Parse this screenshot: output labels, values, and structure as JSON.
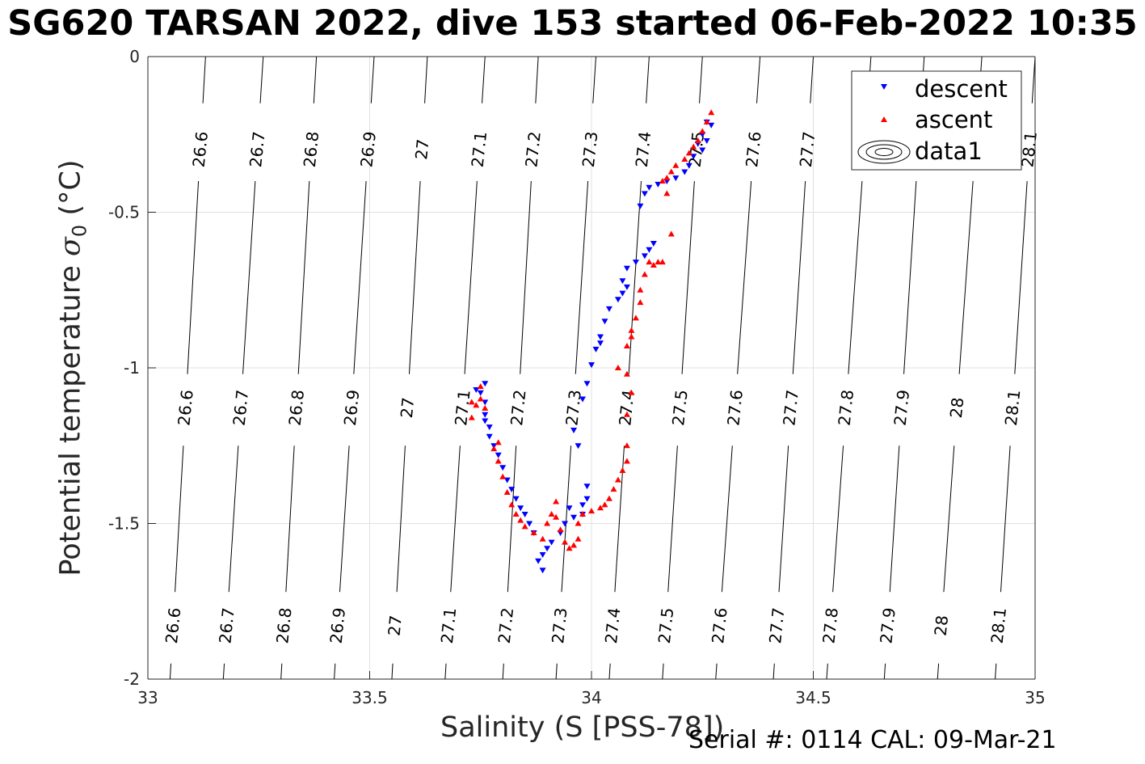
{
  "title": "SG620 TARSAN 2022, dive 153 started 06-Feb-2022 10:35",
  "xlabel": "Salinity (S [PSS-78])",
  "ylabel_prefix": "Potential temperature ",
  "ylabel_symbol": "σ",
  "ylabel_sub": "0",
  "ylabel_unit": " (°C)",
  "footer": "Serial #: 0114  CAL: 09-Mar-21",
  "colors": {
    "descent": "#0000ff",
    "ascent": "#ff0000",
    "contour": "#000000",
    "grid": "#e0e0e0"
  },
  "chart_data": {
    "type": "scatter",
    "xlim": [
      33,
      35
    ],
    "ylim": [
      -2,
      0
    ],
    "xticks": [
      "33",
      "33.5",
      "34",
      "34.5",
      "35"
    ],
    "yticks": [
      "0",
      "-0.5",
      "-1",
      "-1.5",
      "-2"
    ],
    "xtick_values": [
      33,
      33.5,
      34,
      34.5,
      35
    ],
    "ytick_values": [
      0,
      -0.5,
      -1,
      -1.5,
      -2
    ],
    "grid": true,
    "legend_position": "top-right",
    "legend": [
      "descent",
      "ascent",
      "data1"
    ],
    "density_contours": {
      "levels": [
        "26.6",
        "26.7",
        "26.8",
        "26.9",
        "27",
        "27.1",
        "27.2",
        "27.3",
        "27.4",
        "27.5",
        "27.6",
        "27.7",
        "27.8",
        "27.9",
        "28",
        "28.1"
      ],
      "bottom_salinity": [
        33.05,
        33.17,
        33.3,
        33.42,
        33.55,
        33.67,
        33.8,
        33.92,
        34.04,
        34.16,
        34.28,
        34.41,
        34.53,
        34.66,
        34.78,
        34.91
      ],
      "top_salinity": [
        33.13,
        33.26,
        33.38,
        33.51,
        33.63,
        33.76,
        33.88,
        34.01,
        34.13,
        34.25,
        34.38,
        34.5,
        34.63,
        34.75,
        34.88,
        35.0
      ]
    },
    "series": [
      {
        "name": "descent",
        "marker": "triangle-down",
        "points": [
          [
            34.26,
            -0.21
          ],
          [
            34.27,
            -0.22
          ],
          [
            34.25,
            -0.25
          ],
          [
            34.26,
            -0.27
          ],
          [
            34.24,
            -0.28
          ],
          [
            34.25,
            -0.3
          ],
          [
            34.23,
            -0.32
          ],
          [
            34.22,
            -0.35
          ],
          [
            34.21,
            -0.37
          ],
          [
            34.19,
            -0.39
          ],
          [
            34.17,
            -0.4
          ],
          [
            34.15,
            -0.41
          ],
          [
            34.13,
            -0.42
          ],
          [
            34.12,
            -0.44
          ],
          [
            34.11,
            -0.48
          ],
          [
            34.14,
            -0.6
          ],
          [
            34.13,
            -0.62
          ],
          [
            34.12,
            -0.64
          ],
          [
            34.1,
            -0.66
          ],
          [
            34.08,
            -0.68
          ],
          [
            34.07,
            -0.72
          ],
          [
            34.08,
            -0.74
          ],
          [
            34.07,
            -0.76
          ],
          [
            34.06,
            -0.78
          ],
          [
            34.04,
            -0.81
          ],
          [
            34.03,
            -0.85
          ],
          [
            34.02,
            -0.9
          ],
          [
            34.01,
            -0.94
          ],
          [
            34.02,
            -0.92
          ],
          [
            34.0,
            -0.99
          ],
          [
            33.99,
            -1.05
          ],
          [
            33.98,
            -1.1
          ],
          [
            33.96,
            -1.2
          ],
          [
            33.97,
            -1.25
          ],
          [
            33.99,
            -1.38
          ],
          [
            33.99,
            -1.42
          ],
          [
            33.98,
            -1.44
          ],
          [
            33.98,
            -1.47
          ],
          [
            33.96,
            -1.48
          ],
          [
            33.95,
            -1.45
          ],
          [
            33.94,
            -1.5
          ],
          [
            33.93,
            -1.53
          ],
          [
            33.91,
            -1.56
          ],
          [
            33.9,
            -1.58
          ],
          [
            33.89,
            -1.6
          ],
          [
            33.88,
            -1.62
          ],
          [
            33.89,
            -1.65
          ],
          [
            33.87,
            -1.53
          ],
          [
            33.86,
            -1.5
          ],
          [
            33.85,
            -1.47
          ],
          [
            33.84,
            -1.45
          ],
          [
            33.83,
            -1.42
          ],
          [
            33.82,
            -1.39
          ],
          [
            33.81,
            -1.36
          ],
          [
            33.8,
            -1.32
          ],
          [
            33.79,
            -1.28
          ],
          [
            33.78,
            -1.25
          ],
          [
            33.77,
            -1.22
          ],
          [
            33.77,
            -1.19
          ],
          [
            33.76,
            -1.17
          ],
          [
            33.76,
            -1.15
          ],
          [
            33.76,
            -1.11
          ],
          [
            33.75,
            -1.08
          ],
          [
            33.76,
            -1.05
          ],
          [
            33.74,
            -1.07
          ]
        ]
      },
      {
        "name": "ascent",
        "marker": "triangle-up",
        "points": [
          [
            34.27,
            -0.18
          ],
          [
            34.26,
            -0.21
          ],
          [
            34.25,
            -0.24
          ],
          [
            34.24,
            -0.27
          ],
          [
            34.23,
            -0.29
          ],
          [
            34.22,
            -0.31
          ],
          [
            34.21,
            -0.33
          ],
          [
            34.19,
            -0.35
          ],
          [
            34.18,
            -0.37
          ],
          [
            34.17,
            -0.39
          ],
          [
            34.16,
            -0.4
          ],
          [
            34.17,
            -0.44
          ],
          [
            34.18,
            -0.57
          ],
          [
            34.15,
            -0.66
          ],
          [
            34.14,
            -0.67
          ],
          [
            34.13,
            -0.66
          ],
          [
            34.16,
            -0.66
          ],
          [
            34.12,
            -0.7
          ],
          [
            34.11,
            -0.75
          ],
          [
            34.11,
            -0.79
          ],
          [
            34.1,
            -0.84
          ],
          [
            34.09,
            -0.88
          ],
          [
            34.08,
            -0.93
          ],
          [
            34.09,
            -0.9
          ],
          [
            34.06,
            -1.0
          ],
          [
            34.08,
            -1.02
          ],
          [
            34.09,
            -1.08
          ],
          [
            34.08,
            -1.15
          ],
          [
            34.08,
            -1.25
          ],
          [
            34.08,
            -1.3
          ],
          [
            34.07,
            -1.33
          ],
          [
            34.06,
            -1.36
          ],
          [
            34.05,
            -1.39
          ],
          [
            34.04,
            -1.42
          ],
          [
            34.03,
            -1.44
          ],
          [
            34.02,
            -1.45
          ],
          [
            34.0,
            -1.46
          ],
          [
            33.98,
            -1.47
          ],
          [
            33.97,
            -1.5
          ],
          [
            33.97,
            -1.55
          ],
          [
            33.96,
            -1.57
          ],
          [
            33.95,
            -1.58
          ],
          [
            33.94,
            -1.56
          ],
          [
            33.93,
            -1.52
          ],
          [
            33.92,
            -1.48
          ],
          [
            33.92,
            -1.43
          ],
          [
            33.91,
            -1.47
          ],
          [
            33.9,
            -1.5
          ],
          [
            33.89,
            -1.55
          ],
          [
            33.87,
            -1.53
          ],
          [
            33.85,
            -1.51
          ],
          [
            33.84,
            -1.49
          ],
          [
            33.83,
            -1.47
          ],
          [
            33.82,
            -1.44
          ],
          [
            33.81,
            -1.4
          ],
          [
            33.8,
            -1.35
          ],
          [
            33.79,
            -1.3
          ],
          [
            33.78,
            -1.26
          ],
          [
            33.79,
            -1.24
          ],
          [
            33.76,
            -1.13
          ],
          [
            33.75,
            -1.1
          ],
          [
            33.75,
            -1.06
          ],
          [
            33.74,
            -1.12
          ],
          [
            33.73,
            -1.16
          ],
          [
            33.73,
            -1.11
          ]
        ]
      }
    ]
  }
}
